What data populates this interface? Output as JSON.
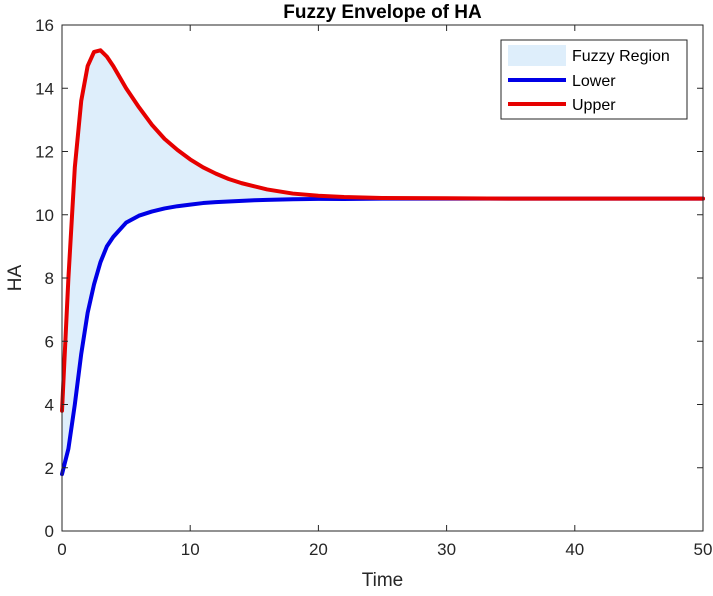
{
  "chart_data": {
    "type": "area",
    "title": "Fuzzy Envelope of HA",
    "xlabel": "Time",
    "ylabel": "HA",
    "xlim": [
      0,
      50
    ],
    "ylim": [
      0,
      16
    ],
    "xticks": [
      0,
      10,
      20,
      30,
      40,
      50
    ],
    "yticks": [
      0,
      2,
      4,
      6,
      8,
      10,
      12,
      14,
      16
    ],
    "grid": false,
    "legend_position": "top-right",
    "x": [
      0,
      0.5,
      1,
      1.5,
      2,
      2.5,
      3,
      3.5,
      4,
      5,
      6,
      7,
      8,
      9,
      10,
      11,
      12,
      13,
      14,
      15,
      16,
      18,
      20,
      22,
      25,
      30,
      35,
      40,
      45,
      50
    ],
    "series": [
      {
        "name": "Fuzzy Region",
        "kind": "fill",
        "color": "#deeefb",
        "lower_series": "Lower",
        "upper_series": "Upper"
      },
      {
        "name": "Lower",
        "kind": "line",
        "color": "#0000e6",
        "values": [
          1.8,
          2.6,
          4.0,
          5.6,
          6.9,
          7.8,
          8.5,
          9.0,
          9.3,
          9.75,
          9.97,
          10.1,
          10.2,
          10.27,
          10.32,
          10.37,
          10.4,
          10.42,
          10.44,
          10.46,
          10.47,
          10.49,
          10.5,
          10.5,
          10.51,
          10.51,
          10.51,
          10.51,
          10.51,
          10.51
        ]
      },
      {
        "name": "Upper",
        "kind": "line",
        "color": "#e60000",
        "values": [
          3.8,
          8.0,
          11.5,
          13.6,
          14.7,
          15.15,
          15.2,
          15.0,
          14.7,
          14.0,
          13.4,
          12.85,
          12.4,
          12.05,
          11.75,
          11.5,
          11.3,
          11.13,
          11.0,
          10.9,
          10.8,
          10.67,
          10.6,
          10.56,
          10.53,
          10.52,
          10.51,
          10.51,
          10.51,
          10.51
        ]
      }
    ]
  }
}
